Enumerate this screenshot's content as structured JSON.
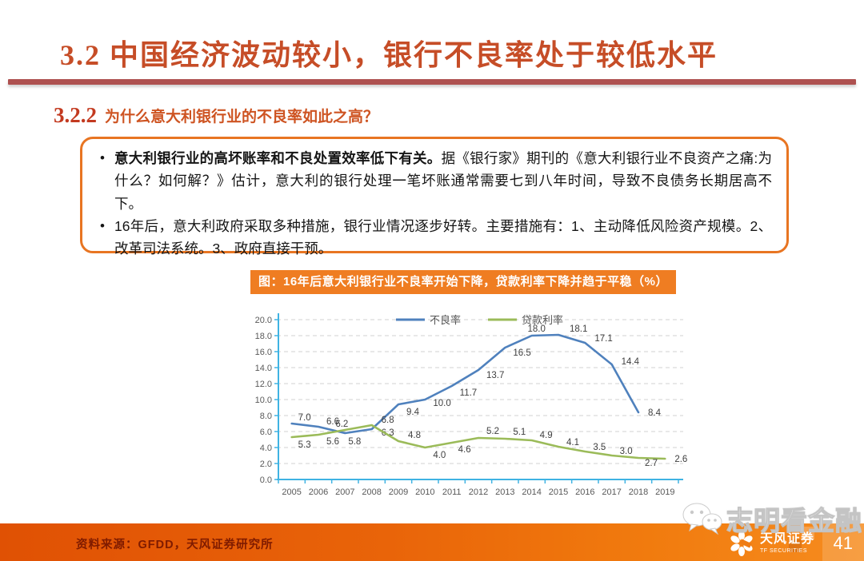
{
  "header": {
    "title": "3.2 中国经济波动较小，银行不良率处于较低水平"
  },
  "subtitle": {
    "number": "3.2.2",
    "text": "为什么意大利银行业的不良率如此之高？"
  },
  "callout": {
    "bullet1_bold": "意大利银行业的高坏账率和不良处置效率低下有关。",
    "bullet1_rest": "据《银行家》期刊的《意大利银行业不良资产之痛:为什么？如何解？》估计，意大利的银行处理一笔坏账通常需要七到八年时间，导致不良债务长期居高不下。",
    "bullet2": "16年后，意大利政府采取多种措施，银行业情况逐步好转。主要措施有：1、主动降低风险资产规模。2、改革司法系统。3、政府直接干预。"
  },
  "chart": {
    "banner": "图：16年后意大利银行业不良率开始下降，贷款利率下降并趋于平稳（%）"
  },
  "chart_data": {
    "type": "line",
    "title": "图：16年后意大利银行业不良率开始下降，贷款利率下降并趋于平稳（%）",
    "categories": [
      "2005",
      "2006",
      "2007",
      "2008",
      "2009",
      "2010",
      "2011",
      "2012",
      "2013",
      "2014",
      "2015",
      "2016",
      "2017",
      "2018",
      "2019"
    ],
    "series": [
      {
        "name": "不良率",
        "color": "#4f81bd",
        "values": [
          7.0,
          6.6,
          5.8,
          6.3,
          9.4,
          10.0,
          11.7,
          13.7,
          16.5,
          18.0,
          18.1,
          17.1,
          14.4,
          8.4,
          null
        ]
      },
      {
        "name": "贷款利率",
        "color": "#9bbb59",
        "values": [
          5.3,
          5.6,
          6.2,
          6.8,
          4.8,
          4.0,
          4.6,
          5.2,
          5.1,
          4.9,
          4.1,
          3.5,
          3.0,
          2.7,
          2.6
        ]
      }
    ],
    "ylim": [
      0,
      20
    ],
    "ytick_step": 2,
    "ytick_format_decimals": 1,
    "grid": true,
    "legend_position": "top-center",
    "axis_color": "#3fb3e3",
    "grid_color": "#d2d2d2",
    "data_labels": true
  },
  "footer": {
    "source": "资料来源：GFDD，天风证券研究所",
    "page": "41"
  },
  "watermark": {
    "text": "志明看金融"
  },
  "logo": {
    "name_cn": "天风证券",
    "name_en": "TF SECURITIES"
  }
}
